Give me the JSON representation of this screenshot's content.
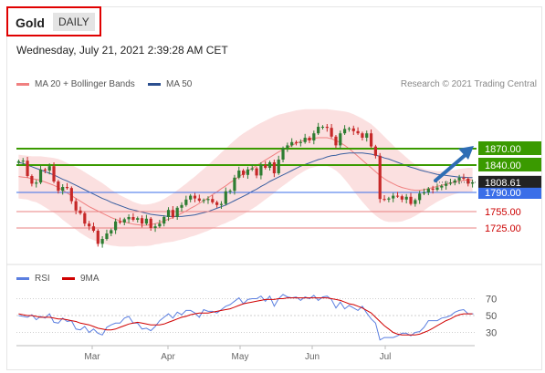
{
  "header": {
    "symbol": "Gold",
    "timeframe": "DAILY"
  },
  "datetime": "Wednesday, July 21, 2021 2:39:28 AM CET",
  "credit": "Research © 2021 Trading Central",
  "legend": {
    "bollinger": "MA 20 + Bollinger Bands",
    "ma50": "MA 50",
    "rsi": "RSI",
    "ma9": "9MA"
  },
  "colors": {
    "up": "#2e7d32",
    "down": "#c62828",
    "resistance": "#3a9a00",
    "support": "#3a6ee8",
    "target": "#e88080",
    "bband": "#fadadb",
    "ma20": "#f08080",
    "ma50": "#3a5fa0",
    "rsi": "#5b7fe0",
    "ma9": "#d00000",
    "arrow": "#2e6db4",
    "price_tag": "#222222"
  },
  "icons": {
    "arrow": "arrow-up-right-icon"
  },
  "chart_data": [
    {
      "type": "candlestick",
      "title": "",
      "x_labels": [
        "Mar",
        "Apr",
        "May",
        "Jun",
        "Jul"
      ],
      "last_price": 1808.61,
      "levels": [
        {
          "value": 1870.0,
          "label": "1870.00",
          "kind": "resistance"
        },
        {
          "value": 1840.0,
          "label": "1840.00",
          "kind": "resistance"
        },
        {
          "value": 1790.0,
          "label": "1790.00",
          "kind": "pivot"
        },
        {
          "value": 1755.0,
          "label": "1755.00",
          "kind": "support"
        },
        {
          "value": 1725.0,
          "label": "1725.00",
          "kind": "support"
        }
      ],
      "closes": [
        1847,
        1848,
        1820,
        1806,
        1808,
        1832,
        1830,
        1838,
        1810,
        1793,
        1800,
        1798,
        1774,
        1757,
        1752,
        1733,
        1728,
        1720,
        1696,
        1705,
        1715,
        1721,
        1737,
        1735,
        1741,
        1745,
        1740,
        1743,
        1733,
        1742,
        1725,
        1728,
        1733,
        1745,
        1758,
        1745,
        1762,
        1767,
        1777,
        1784,
        1779,
        1775,
        1776,
        1778,
        1772,
        1767,
        1769,
        1792,
        1793,
        1817,
        1830,
        1822,
        1832,
        1834,
        1821,
        1840,
        1835,
        1845,
        1825,
        1850,
        1871,
        1876,
        1882,
        1881,
        1882,
        1890,
        1885,
        1898,
        1910,
        1910,
        1908,
        1892,
        1876,
        1898,
        1906,
        1907,
        1902,
        1898,
        1890,
        1898,
        1874,
        1857,
        1778,
        1777,
        1779,
        1784,
        1783,
        1777,
        1782,
        1769,
        1776,
        1788,
        1790,
        1797,
        1795,
        1799,
        1802,
        1806,
        1808,
        1812,
        1817,
        1815,
        1806,
        1808.61
      ],
      "ma20": [
        1819,
        1818,
        1817,
        1815,
        1814,
        1812,
        1809,
        1806,
        1803,
        1799,
        1794,
        1789,
        1784,
        1779,
        1774,
        1769,
        1764,
        1760,
        1756,
        1752,
        1748,
        1744,
        1741,
        1738,
        1736,
        1734,
        1732,
        1731,
        1730,
        1730,
        1731,
        1733,
        1735,
        1738,
        1741,
        1744,
        1748,
        1752,
        1756,
        1761,
        1765,
        1770,
        1775,
        1780,
        1786,
        1791,
        1797,
        1802,
        1808,
        1813,
        1819,
        1824,
        1829,
        1834,
        1839,
        1844,
        1849,
        1854,
        1859,
        1864,
        1868,
        1872,
        1876,
        1880,
        1883,
        1886,
        1888,
        1889,
        1890,
        1890,
        1890,
        1888,
        1885,
        1881,
        1876,
        1870,
        1863,
        1856,
        1849,
        1842,
        1835,
        1828,
        1821,
        1815,
        1810,
        1806,
        1802,
        1799,
        1797,
        1795,
        1794,
        1794,
        1795,
        1797,
        1799,
        1801,
        1803,
        1805,
        1807,
        1809,
        1811,
        1812,
        1813,
        1813
      ],
      "ma50": [
        1845,
        1843,
        1840,
        1837,
        1834,
        1831,
        1828,
        1825,
        1822,
        1818,
        1814,
        1811,
        1807,
        1803,
        1799,
        1795,
        1791,
        1787,
        1783,
        1779,
        1776,
        1772,
        1769,
        1766,
        1763,
        1760,
        1758,
        1756,
        1754,
        1752,
        1750,
        1749,
        1748,
        1747,
        1746,
        1746,
        1746,
        1746,
        1747,
        1748,
        1749,
        1751,
        1753,
        1755,
        1758,
        1761,
        1764,
        1767,
        1771,
        1775,
        1779,
        1783,
        1787,
        1792,
        1796,
        1801,
        1805,
        1810,
        1814,
        1818,
        1822,
        1826,
        1830,
        1834,
        1838,
        1841,
        1844,
        1847,
        1850,
        1852,
        1855,
        1857,
        1858,
        1860,
        1861,
        1862,
        1862,
        1862,
        1862,
        1861,
        1860,
        1858,
        1856,
        1853,
        1851,
        1848,
        1845,
        1842,
        1839,
        1836,
        1834,
        1831,
        1829,
        1827,
        1825,
        1823,
        1822,
        1821,
        1820,
        1819,
        1818,
        1818,
        1817,
        1817
      ],
      "band_width": [
        40,
        40,
        40,
        41,
        42,
        44,
        46,
        48,
        50,
        52,
        54,
        55,
        56,
        57,
        58,
        58,
        58,
        57,
        56,
        55,
        53,
        51,
        49,
        47,
        45,
        43,
        41,
        39,
        38,
        38,
        38,
        38,
        39,
        40,
        42,
        44,
        46,
        48,
        50,
        52,
        54,
        56,
        58,
        60,
        62,
        64,
        66,
        68,
        70,
        72,
        73,
        74,
        74,
        74,
        74,
        73,
        72,
        71,
        70,
        68,
        66,
        64,
        62,
        60,
        58,
        56,
        54,
        53,
        52,
        52,
        52,
        53,
        55,
        58,
        62,
        66,
        70,
        73,
        76,
        78,
        80,
        80,
        79,
        77,
        74,
        70,
        66,
        62,
        57,
        52,
        47,
        42,
        38,
        34,
        31,
        28,
        26,
        24,
        23,
        22,
        22,
        22,
        22,
        22
      ]
    },
    {
      "type": "line",
      "title": "",
      "yticks": [
        70,
        50,
        30
      ],
      "ylim": [
        15,
        78
      ],
      "series": [
        {
          "name": "RSI",
          "values": [
            50,
            49,
            48,
            51,
            45,
            49,
            47,
            52,
            42,
            41,
            47,
            43,
            44,
            34,
            33,
            37,
            30,
            34,
            29,
            27,
            36,
            39,
            41,
            41,
            47,
            49,
            41,
            41,
            34,
            35,
            32,
            37,
            44,
            48,
            52,
            47,
            54,
            51,
            56,
            56,
            53,
            48,
            57,
            55,
            55,
            53,
            57,
            61,
            63,
            67,
            71,
            64,
            69,
            70,
            70,
            73,
            67,
            73,
            61,
            70,
            75,
            72,
            71,
            72,
            68,
            72,
            70,
            74,
            68,
            72,
            73,
            69,
            59,
            66,
            58,
            62,
            59,
            56,
            61,
            53,
            46,
            41,
            21,
            24,
            24,
            24,
            26,
            29,
            29,
            26,
            30,
            31,
            36,
            44,
            44,
            44,
            47,
            48,
            50,
            54,
            56,
            57,
            52,
            52
          ]
        },
        {
          "name": "9MA",
          "values": [
            52,
            51,
            50,
            50,
            49,
            48,
            48,
            48,
            47,
            46,
            46,
            45,
            44,
            43,
            41,
            40,
            39,
            37,
            35,
            34,
            33,
            33,
            34,
            36,
            38,
            40,
            41,
            42,
            41,
            40,
            39,
            39,
            39,
            40,
            42,
            44,
            46,
            48,
            49,
            51,
            52,
            53,
            53,
            53,
            54,
            55,
            56,
            57,
            58,
            60,
            62,
            64,
            65,
            66,
            67,
            68,
            69,
            69,
            69,
            70,
            70,
            71,
            71,
            71,
            71,
            71,
            71,
            71,
            71,
            71,
            71,
            70,
            69,
            68,
            66,
            64,
            63,
            61,
            59,
            56,
            53,
            48,
            43,
            38,
            34,
            30,
            28,
            27,
            27,
            27,
            27,
            28,
            30,
            32,
            35,
            38,
            41,
            44,
            46,
            49,
            51,
            52,
            52,
            52
          ]
        }
      ]
    }
  ]
}
